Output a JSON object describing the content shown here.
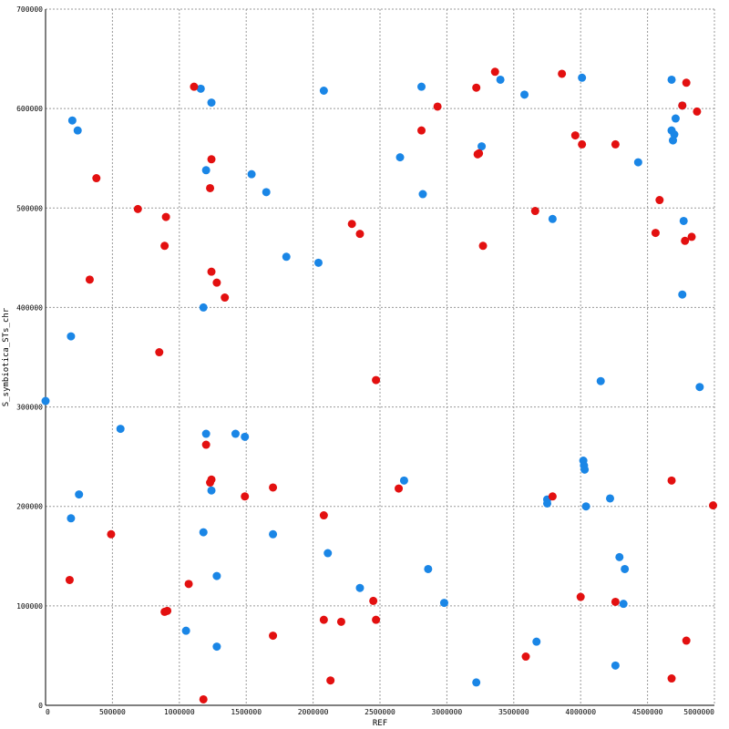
{
  "chart_data": {
    "type": "scatter",
    "xlabel": "REF",
    "ylabel": "S_symbiotica_STs_chr",
    "xlim": [
      0,
      5000000
    ],
    "ylim": [
      0,
      700000
    ],
    "x_ticks": [
      "0",
      "500000",
      "1000000",
      "1500000",
      "2000000",
      "2500000",
      "3000000",
      "3500000",
      "4000000",
      "4500000",
      "5000000"
    ],
    "y_ticks": [
      "0",
      "100000",
      "200000",
      "300000",
      "400000",
      "500000",
      "600000",
      "700000"
    ],
    "grid": true,
    "colors": {
      "forward": "#1a86e6",
      "reverse": "#e31010"
    },
    "series": [
      {
        "color": "#1a86e6",
        "points": [
          [
            0,
            306000
          ],
          [
            200000,
            588000
          ],
          [
            240000,
            578000
          ],
          [
            190000,
            371000
          ],
          [
            190000,
            188000
          ],
          [
            250000,
            212000
          ],
          [
            560000,
            278000
          ],
          [
            1160000,
            620000
          ],
          [
            1240000,
            606000
          ],
          [
            1200000,
            538000
          ],
          [
            1540000,
            534000
          ],
          [
            1650000,
            516000
          ],
          [
            1180000,
            400000
          ],
          [
            1200000,
            273000
          ],
          [
            1420000,
            273000
          ],
          [
            1490000,
            270000
          ],
          [
            1240000,
            216000
          ],
          [
            1180000,
            174000
          ],
          [
            1700000,
            172000
          ],
          [
            1280000,
            130000
          ],
          [
            1050000,
            75000
          ],
          [
            1280000,
            59000
          ],
          [
            1800000,
            451000
          ],
          [
            2040000,
            445000
          ],
          [
            2080000,
            618000
          ],
          [
            2110000,
            153000
          ],
          [
            2350000,
            118000
          ],
          [
            2650000,
            551000
          ],
          [
            2680000,
            226000
          ],
          [
            2810000,
            622000
          ],
          [
            2820000,
            514000
          ],
          [
            2860000,
            137000
          ],
          [
            2980000,
            103000
          ],
          [
            3220000,
            23000
          ],
          [
            3260000,
            562000
          ],
          [
            3400000,
            629000
          ],
          [
            3580000,
            614000
          ],
          [
            3670000,
            64000
          ],
          [
            3750000,
            207000
          ],
          [
            3750000,
            203000
          ],
          [
            3790000,
            489000
          ],
          [
            4010000,
            631000
          ],
          [
            4020000,
            246000
          ],
          [
            4025000,
            241000
          ],
          [
            4030000,
            237000
          ],
          [
            4040000,
            200000
          ],
          [
            4150000,
            326000
          ],
          [
            4220000,
            208000
          ],
          [
            4260000,
            40000
          ],
          [
            4290000,
            149000
          ],
          [
            4330000,
            137000
          ],
          [
            4320000,
            102000
          ],
          [
            4430000,
            546000
          ],
          [
            4680000,
            629000
          ],
          [
            4680000,
            578000
          ],
          [
            4690000,
            568000
          ],
          [
            4700000,
            574000
          ],
          [
            4710000,
            590000
          ],
          [
            4760000,
            603000
          ],
          [
            4760000,
            413000
          ],
          [
            4770000,
            487000
          ],
          [
            4890000,
            320000
          ]
        ]
      },
      {
        "color": "#e31010",
        "points": [
          [
            180000,
            126000
          ],
          [
            330000,
            428000
          ],
          [
            380000,
            530000
          ],
          [
            490000,
            172000
          ],
          [
            690000,
            499000
          ],
          [
            850000,
            355000
          ],
          [
            890000,
            462000
          ],
          [
            900000,
            491000
          ],
          [
            890000,
            94000
          ],
          [
            910000,
            95000
          ],
          [
            1070000,
            122000
          ],
          [
            1110000,
            622000
          ],
          [
            1180000,
            6000
          ],
          [
            1200000,
            262000
          ],
          [
            1230000,
            520000
          ],
          [
            1240000,
            549000
          ],
          [
            1240000,
            436000
          ],
          [
            1280000,
            425000
          ],
          [
            1340000,
            410000
          ],
          [
            1230000,
            224000
          ],
          [
            1240000,
            227000
          ],
          [
            1490000,
            210000
          ],
          [
            1700000,
            219000
          ],
          [
            1700000,
            70000
          ],
          [
            2080000,
            191000
          ],
          [
            2080000,
            86000
          ],
          [
            2130000,
            25000
          ],
          [
            2210000,
            84000
          ],
          [
            2290000,
            484000
          ],
          [
            2350000,
            474000
          ],
          [
            2450000,
            105000
          ],
          [
            2470000,
            327000
          ],
          [
            2470000,
            86000
          ],
          [
            2640000,
            218000
          ],
          [
            2810000,
            578000
          ],
          [
            2930000,
            602000
          ],
          [
            3220000,
            621000
          ],
          [
            3240000,
            555000
          ],
          [
            3230000,
            554000
          ],
          [
            3270000,
            462000
          ],
          [
            3360000,
            637000
          ],
          [
            3590000,
            49000
          ],
          [
            3660000,
            497000
          ],
          [
            3790000,
            210000
          ],
          [
            3860000,
            635000
          ],
          [
            3960000,
            573000
          ],
          [
            4010000,
            564000
          ],
          [
            4000000,
            109000
          ],
          [
            4260000,
            564000
          ],
          [
            4260000,
            104000
          ],
          [
            4560000,
            475000
          ],
          [
            4590000,
            508000
          ],
          [
            4680000,
            226000
          ],
          [
            4680000,
            27000
          ],
          [
            4760000,
            603000
          ],
          [
            4780000,
            467000
          ],
          [
            4790000,
            626000
          ],
          [
            4790000,
            65000
          ],
          [
            4830000,
            471000
          ],
          [
            4870000,
            597000
          ],
          [
            4990000,
            201000
          ]
        ]
      }
    ]
  }
}
